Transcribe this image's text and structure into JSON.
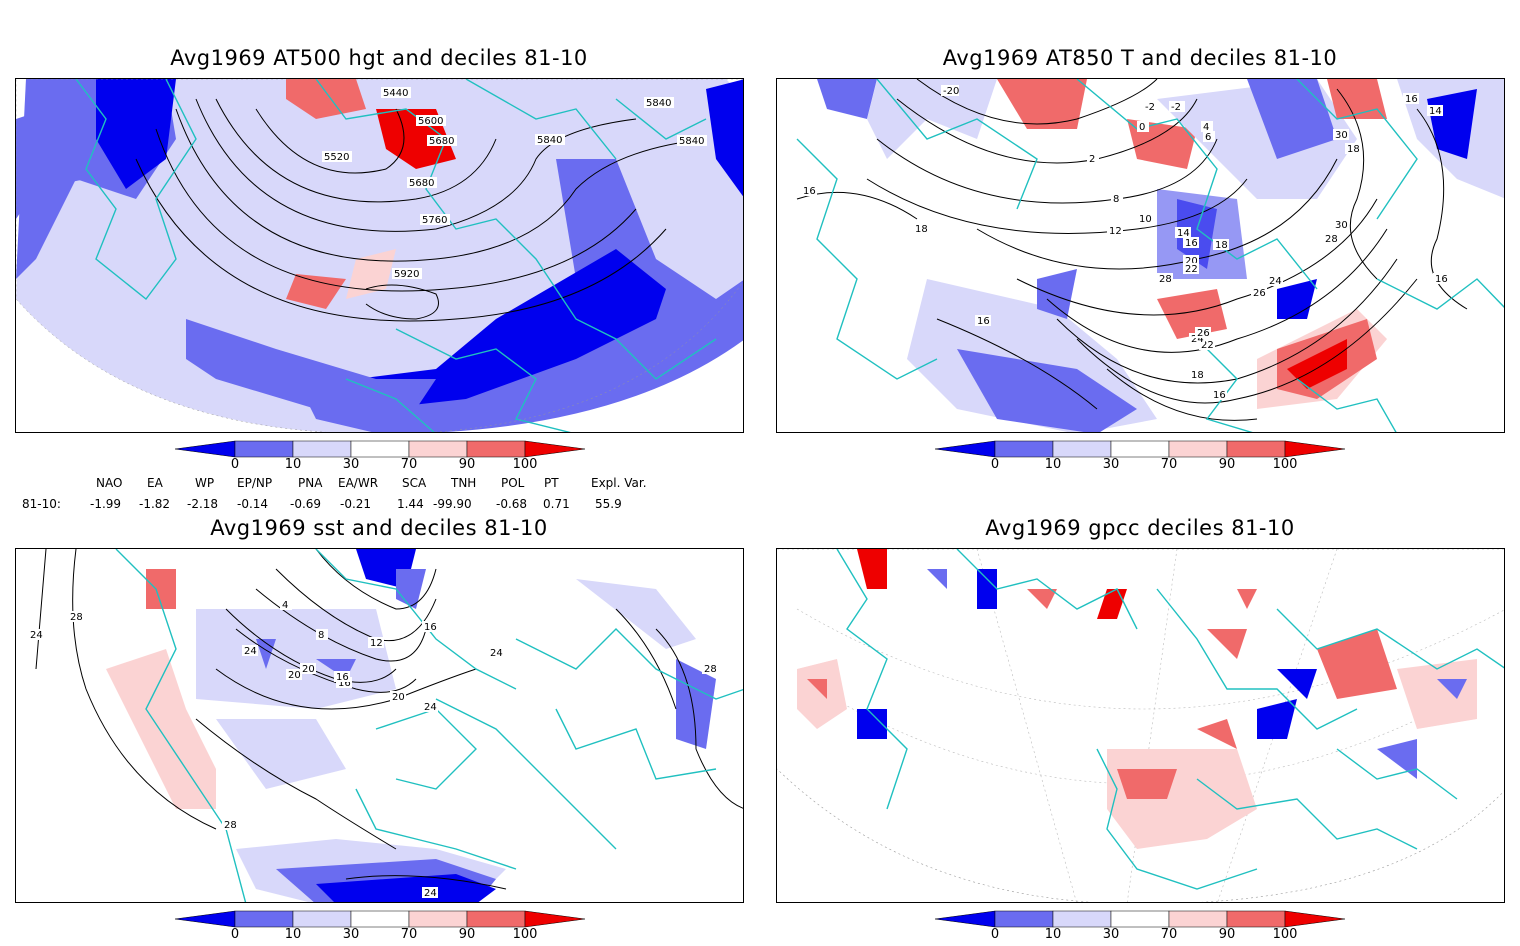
{
  "panels": [
    {
      "id": "p1",
      "title": "Avg1969 AT500 hgt and deciles 81-10",
      "contour_labels": [
        "5440",
        "5600",
        "5520",
        "5680",
        "5680",
        "5840",
        "5840",
        "5840",
        "5760",
        "5920"
      ]
    },
    {
      "id": "p2",
      "title": "Avg1969 AT850 T and deciles 81-10",
      "contour_labels": [
        "-20",
        "-2",
        "-2",
        "0",
        "2",
        "4",
        "6",
        "8",
        "10",
        "12",
        "14",
        "16",
        "18",
        "18",
        "16",
        "16",
        "16",
        "18",
        "20",
        "22",
        "22",
        "24",
        "24",
        "26",
        "26",
        "28",
        "28",
        "30",
        "30",
        "18",
        "16",
        "14",
        "16"
      ]
    },
    {
      "id": "p3",
      "title": "Avg1969 sst and deciles 81-10",
      "contour_labels": [
        "24",
        "28",
        "24",
        "20",
        "16",
        "12",
        "8",
        "4",
        "16",
        "20",
        "24",
        "24",
        "28",
        "24",
        "28",
        "20",
        "16"
      ]
    },
    {
      "id": "p4",
      "title": "Avg1969 gpcc deciles 81-10",
      "contour_labels": []
    }
  ],
  "colorbar": {
    "ticks": [
      "0",
      "10",
      "30",
      "70",
      "90",
      "100"
    ],
    "colors": {
      "dark_blue": "#0000ee",
      "mid_blue": "#6a6cf0",
      "light_blue": "#d8d8fa",
      "white": "#ffffff",
      "light_red": "#fbd3d3",
      "mid_red": "#f06a6a",
      "dark_red": "#ee0000"
    }
  },
  "indices": {
    "headers": [
      "NAO",
      "EA",
      "WP",
      "EP/NP",
      "PNA",
      "EA/WR",
      "SCA",
      "TNH",
      "POL",
      "PT",
      "Expl. Var."
    ],
    "row_label": "81-10:",
    "values": [
      "-1.99",
      "-1.82",
      "-2.18",
      "-0.14",
      "-0.69",
      "-0.21",
      "1.44",
      "-99.90",
      "-0.68",
      "0.71",
      "55.9"
    ]
  },
  "map_colors": {
    "coast": "#20c0c0",
    "contour": "#000000"
  }
}
